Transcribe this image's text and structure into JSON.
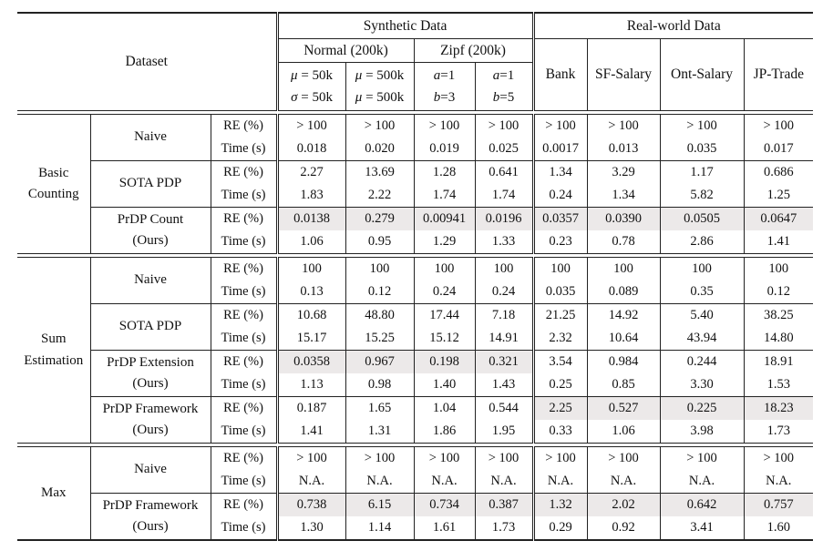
{
  "header": {
    "dataset_label": "Dataset",
    "synthetic_label": "Synthetic Data",
    "realworld_label": "Real-world Data",
    "normal": {
      "label": "Normal (200k)",
      "cols": [
        [
          "μ = 50k",
          "σ = 50k"
        ],
        [
          "μ = 500k",
          "μ = 500k"
        ]
      ]
    },
    "zipf": {
      "label": "Zipf (200k)",
      "cols": [
        [
          "a=1",
          "b=3"
        ],
        [
          "a=1",
          "b=5"
        ]
      ]
    },
    "realworld_cols": [
      "Bank",
      "SF-Salary",
      "Ont-Salary",
      "JP-Trade"
    ]
  },
  "sections": [
    {
      "label_lines": [
        "Basic",
        "Counting"
      ],
      "methods": [
        {
          "name_lines": [
            "Naive"
          ],
          "rows": [
            {
              "metric": "RE (%)",
              "values": [
                "> 100",
                "> 100",
                "> 100",
                "> 100",
                "> 100",
                "> 100",
                "> 100",
                "> 100"
              ],
              "hl": [
                0,
                0,
                0,
                0,
                0,
                0,
                0,
                0
              ]
            },
            {
              "metric": "Time (s)",
              "values": [
                "0.018",
                "0.020",
                "0.019",
                "0.025",
                "0.0017",
                "0.013",
                "0.035",
                "0.017"
              ],
              "hl": [
                0,
                0,
                0,
                0,
                0,
                0,
                0,
                0
              ]
            }
          ]
        },
        {
          "name_lines": [
            "SOTA PDP"
          ],
          "rows": [
            {
              "metric": "RE (%)",
              "values": [
                "2.27",
                "13.69",
                "1.28",
                "0.641",
                "1.34",
                "3.29",
                "1.17",
                "0.686"
              ],
              "hl": [
                0,
                0,
                0,
                0,
                0,
                0,
                0,
                0
              ]
            },
            {
              "metric": "Time (s)",
              "values": [
                "1.83",
                "2.22",
                "1.74",
                "1.74",
                "0.24",
                "1.34",
                "5.82",
                "1.25"
              ],
              "hl": [
                0,
                0,
                0,
                0,
                0,
                0,
                0,
                0
              ]
            }
          ]
        },
        {
          "name_lines": [
            "PrDP Count",
            "(Ours)"
          ],
          "rows": [
            {
              "metric": "RE (%)",
              "values": [
                "0.0138",
                "0.279",
                "0.00941",
                "0.0196",
                "0.0357",
                "0.0390",
                "0.0505",
                "0.0647"
              ],
              "hl": [
                1,
                1,
                1,
                1,
                1,
                1,
                1,
                1
              ]
            },
            {
              "metric": "Time (s)",
              "values": [
                "1.06",
                "0.95",
                "1.29",
                "1.33",
                "0.23",
                "0.78",
                "2.86",
                "1.41"
              ],
              "hl": [
                0,
                0,
                0,
                0,
                0,
                0,
                0,
                0
              ]
            }
          ]
        }
      ]
    },
    {
      "label_lines": [
        "Sum",
        "Estimation"
      ],
      "methods": [
        {
          "name_lines": [
            "Naive"
          ],
          "rows": [
            {
              "metric": "RE (%)",
              "values": [
                "100",
                "100",
                "100",
                "100",
                "100",
                "100",
                "100",
                "100"
              ],
              "hl": [
                0,
                0,
                0,
                0,
                0,
                0,
                0,
                0
              ]
            },
            {
              "metric": "Time (s)",
              "values": [
                "0.13",
                "0.12",
                "0.24",
                "0.24",
                "0.035",
                "0.089",
                "0.35",
                "0.12"
              ],
              "hl": [
                0,
                0,
                0,
                0,
                0,
                0,
                0,
                0
              ]
            }
          ]
        },
        {
          "name_lines": [
            "SOTA PDP"
          ],
          "rows": [
            {
              "metric": "RE (%)",
              "values": [
                "10.68",
                "48.80",
                "17.44",
                "7.18",
                "21.25",
                "14.92",
                "5.40",
                "38.25"
              ],
              "hl": [
                0,
                0,
                0,
                0,
                0,
                0,
                0,
                0
              ]
            },
            {
              "metric": "Time (s)",
              "values": [
                "15.17",
                "15.25",
                "15.12",
                "14.91",
                "2.32",
                "10.64",
                "43.94",
                "14.80"
              ],
              "hl": [
                0,
                0,
                0,
                0,
                0,
                0,
                0,
                0
              ]
            }
          ]
        },
        {
          "name_lines": [
            "PrDP Extension",
            "(Ours)"
          ],
          "rows": [
            {
              "metric": "RE (%)",
              "values": [
                "0.0358",
                "0.967",
                "0.198",
                "0.321",
                "3.54",
                "0.984",
                "0.244",
                "18.91"
              ],
              "hl": [
                1,
                1,
                1,
                1,
                0,
                0,
                0,
                0
              ]
            },
            {
              "metric": "Time (s)",
              "values": [
                "1.13",
                "0.98",
                "1.40",
                "1.43",
                "0.25",
                "0.85",
                "3.30",
                "1.53"
              ],
              "hl": [
                0,
                0,
                0,
                0,
                0,
                0,
                0,
                0
              ]
            }
          ]
        },
        {
          "name_lines": [
            "PrDP Framework",
            "(Ours)"
          ],
          "rows": [
            {
              "metric": "RE (%)",
              "values": [
                "0.187",
                "1.65",
                "1.04",
                "0.544",
                "2.25",
                "0.527",
                "0.225",
                "18.23"
              ],
              "hl": [
                0,
                0,
                0,
                0,
                1,
                1,
                1,
                1
              ]
            },
            {
              "metric": "Time (s)",
              "values": [
                "1.41",
                "1.31",
                "1.86",
                "1.95",
                "0.33",
                "1.06",
                "3.98",
                "1.73"
              ],
              "hl": [
                0,
                0,
                0,
                0,
                0,
                0,
                0,
                0
              ]
            }
          ]
        }
      ]
    },
    {
      "label_lines": [
        "Max"
      ],
      "methods": [
        {
          "name_lines": [
            "Naive"
          ],
          "rows": [
            {
              "metric": "RE (%)",
              "values": [
                "> 100",
                "> 100",
                "> 100",
                "> 100",
                "> 100",
                "> 100",
                "> 100",
                "> 100"
              ],
              "hl": [
                0,
                0,
                0,
                0,
                0,
                0,
                0,
                0
              ]
            },
            {
              "metric": "Time (s)",
              "values": [
                "N.A.",
                "N.A.",
                "N.A.",
                "N.A.",
                "N.A.",
                "N.A.",
                "N.A.",
                "N.A."
              ],
              "hl": [
                0,
                0,
                0,
                0,
                0,
                0,
                0,
                0
              ]
            }
          ]
        },
        {
          "name_lines": [
            "PrDP Framework",
            "(Ours)"
          ],
          "rows": [
            {
              "metric": "RE (%)",
              "values": [
                "0.738",
                "6.15",
                "0.734",
                "0.387",
                "1.32",
                "2.02",
                "0.642",
                "0.757"
              ],
              "hl": [
                1,
                1,
                1,
                1,
                1,
                1,
                1,
                1
              ]
            },
            {
              "metric": "Time (s)",
              "values": [
                "1.30",
                "1.14",
                "1.61",
                "1.73",
                "0.29",
                "0.92",
                "3.41",
                "1.60"
              ],
              "hl": [
                0,
                0,
                0,
                0,
                0,
                0,
                0,
                0
              ]
            }
          ]
        }
      ]
    }
  ]
}
